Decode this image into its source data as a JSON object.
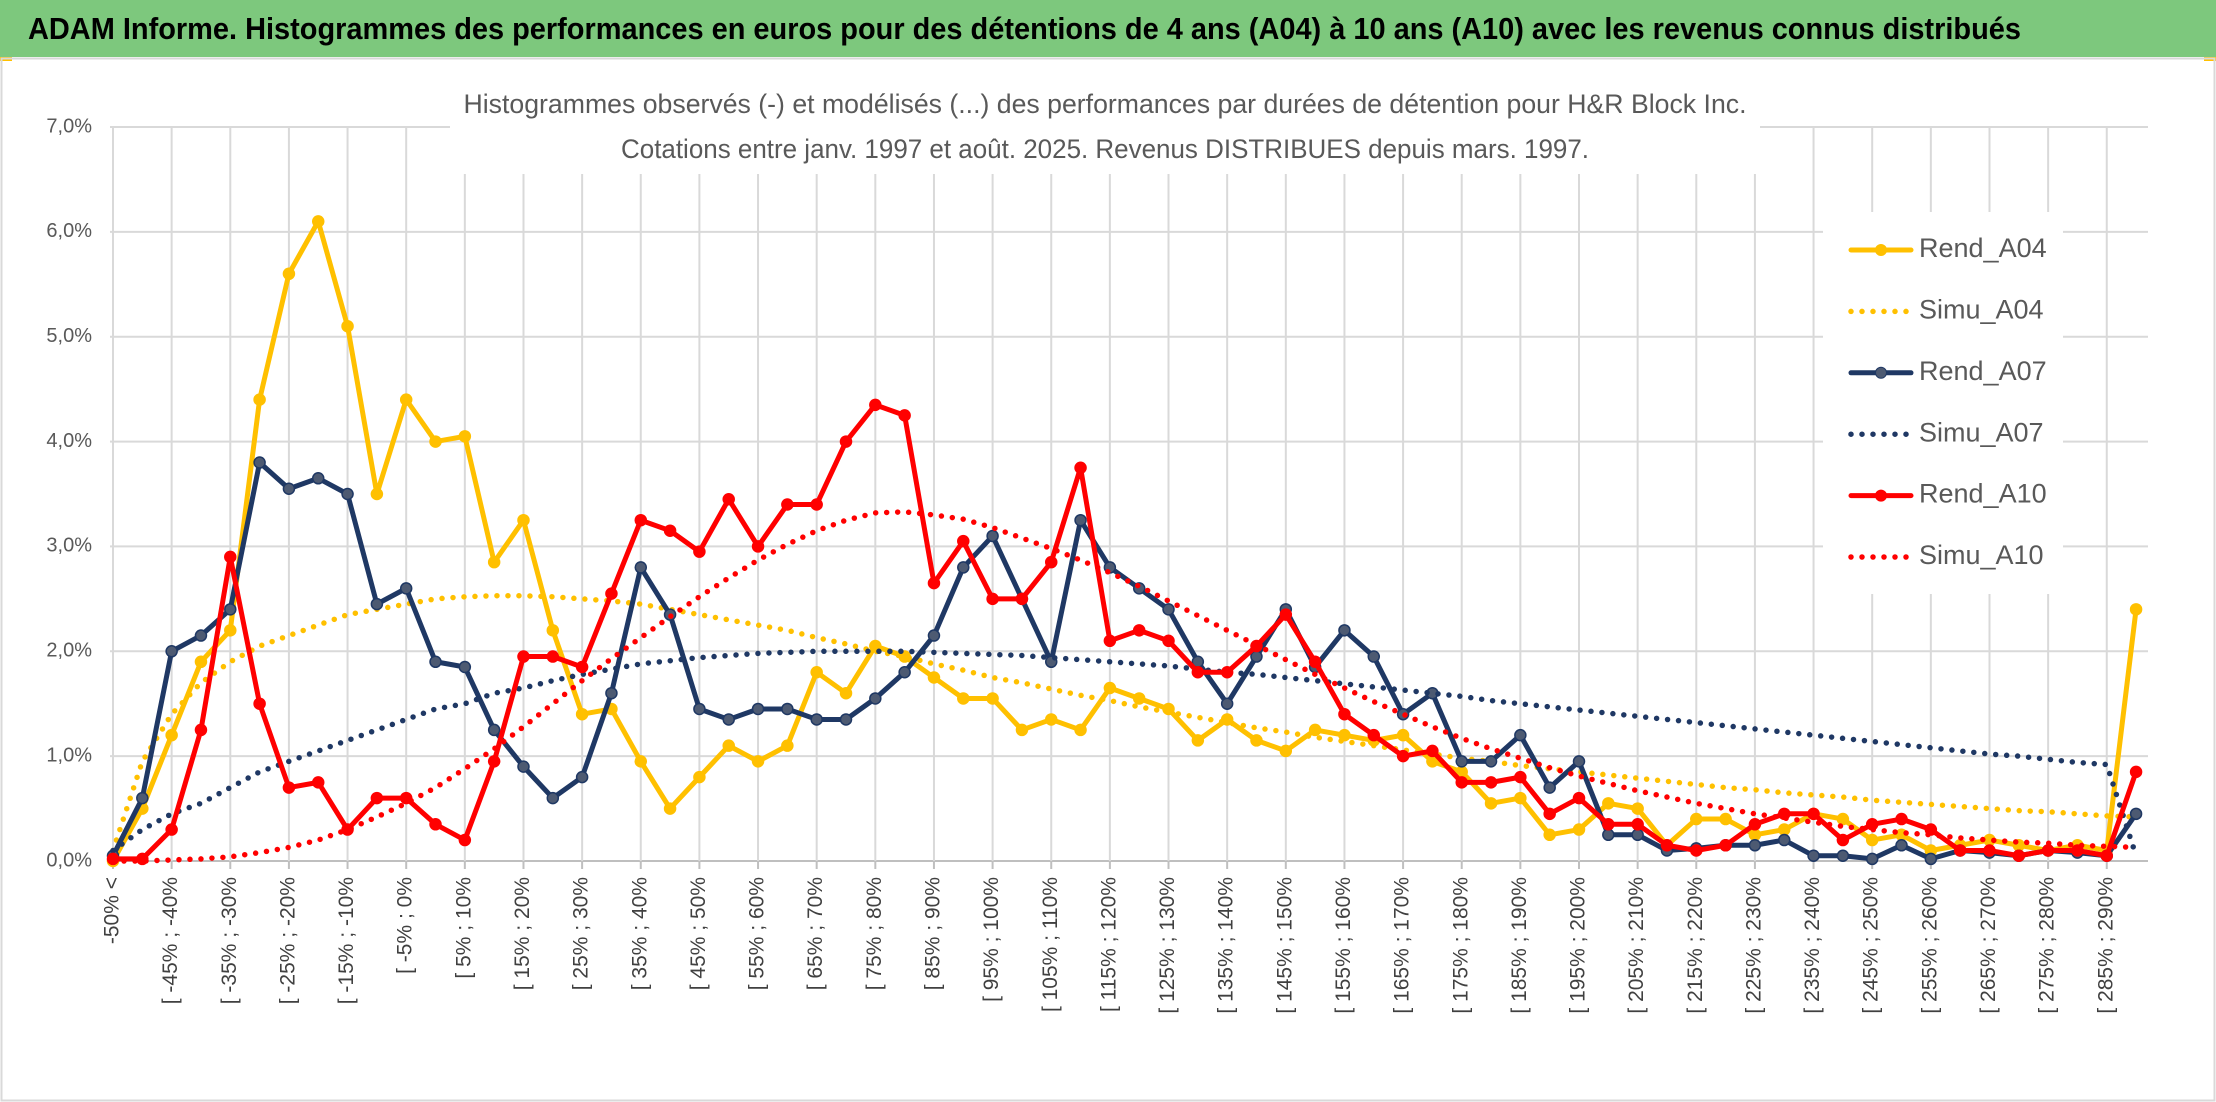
{
  "header": {
    "title": "ADAM Informe. Histogrammes des performances en euros pour des détentions de 4 ans (A04) à 10 ans (A10) avec les revenus connus distribués"
  },
  "chart_data": {
    "type": "line",
    "title": "Histogrammes observés (-) et modélisés (...) des performances par durées de détention pour H&R Block Inc.",
    "subtitle": "Cotations entre janv. 1997 et août. 2025. Revenus DISTRIBUES depuis mars. 1997.",
    "categories": [
      "-50% <",
      null,
      "[ -45% ; -40%",
      null,
      "[ -35% ; -30%",
      null,
      "[ -25% ; -20%",
      null,
      "[ -15% ; -10%",
      null,
      "[ -5% ; 0%",
      null,
      "[ 5% ; 10%",
      null,
      "[ 15% ; 20%",
      null,
      "[ 25% ; 30%",
      null,
      "[ 35% ; 40%",
      null,
      "[ 45% ; 50%",
      null,
      "[ 55% ; 60%",
      null,
      "[ 65% ; 70%",
      null,
      "[ 75% ; 80%",
      null,
      "[ 85% ; 90%",
      null,
      "[ 95% ; 100%",
      null,
      "[ 105% ; 110%",
      null,
      "[ 115% ; 120%",
      null,
      "[ 125% ; 130%",
      null,
      "[ 135% ; 140%",
      null,
      "[ 145% ; 150%",
      null,
      "[ 155% ; 160%",
      null,
      "[ 165% ; 170%",
      null,
      "[ 175% ; 180%",
      null,
      "[ 185% ; 190%",
      null,
      "[ 195% ; 200%",
      null,
      "[ 205% ; 210%",
      null,
      "[ 215% ; 220%",
      null,
      "[ 225% ; 230%",
      null,
      "[ 235% ; 240%",
      null,
      "[ 245% ; 250%",
      null,
      "[ 255% ; 260%",
      null,
      "[ 265% ; 270%",
      null,
      "[ 275% ; 280%",
      null,
      "[ 285% ; 290%",
      null
    ],
    "series": [
      {
        "name": "Rend_A04",
        "color": "#FFC000",
        "style": "solid",
        "markers": true,
        "values": [
          0,
          0.5,
          1.2,
          1.9,
          2.2,
          4.4,
          5.6,
          6.1,
          5.1,
          3.5,
          4.4,
          4.0,
          4.05,
          2.85,
          3.25,
          2.2,
          1.4,
          1.45,
          0.95,
          0.5,
          0.8,
          1.1,
          0.95,
          1.1,
          1.8,
          1.6,
          2.05,
          1.95,
          1.75,
          1.55,
          1.55,
          1.25,
          1.35,
          1.25,
          1.65,
          1.55,
          1.45,
          1.15,
          1.35,
          1.15,
          1.05,
          1.25,
          1.2,
          1.15,
          1.2,
          0.95,
          0.85,
          0.55,
          0.6,
          0.25,
          0.3,
          0.55,
          0.5,
          0.15,
          0.4,
          0.4,
          0.25,
          0.3,
          0.45,
          0.4,
          0.2,
          0.25,
          0.1,
          0.15,
          0.2,
          0.15,
          0.1,
          0.15,
          0.1,
          2.4
        ]
      },
      {
        "name": "Simu_A04",
        "color": "#FFC000",
        "style": "dotted",
        "markers": false,
        "values": [
          0.1,
          0.95,
          1.4,
          1.7,
          1.9,
          2.05,
          2.15,
          2.25,
          2.35,
          2.4,
          2.45,
          2.5,
          2.52,
          2.53,
          2.53,
          2.52,
          2.5,
          2.48,
          2.45,
          2.4,
          2.35,
          2.3,
          2.25,
          2.2,
          2.13,
          2.07,
          2.0,
          1.95,
          1.88,
          1.82,
          1.75,
          1.7,
          1.64,
          1.58,
          1.53,
          1.47,
          1.42,
          1.37,
          1.32,
          1.27,
          1.23,
          1.18,
          1.14,
          1.1,
          1.06,
          1.02,
          0.98,
          0.95,
          0.91,
          0.88,
          0.85,
          0.82,
          0.79,
          0.76,
          0.73,
          0.7,
          0.68,
          0.65,
          0.63,
          0.61,
          0.58,
          0.56,
          0.54,
          0.52,
          0.5,
          0.48,
          0.47,
          0.45,
          0.43,
          0.42
        ]
      },
      {
        "name": "Rend_A07",
        "color": "#1F3864",
        "style": "solid",
        "markers": true,
        "values": [
          0.05,
          0.6,
          2.0,
          2.15,
          2.4,
          3.8,
          3.55,
          3.65,
          3.5,
          2.45,
          2.6,
          1.9,
          1.85,
          1.25,
          0.9,
          0.6,
          0.8,
          1.6,
          2.8,
          2.35,
          1.45,
          1.35,
          1.45,
          1.45,
          1.35,
          1.35,
          1.55,
          1.8,
          2.15,
          2.8,
          3.1,
          2.5,
          1.9,
          3.25,
          2.8,
          2.6,
          2.4,
          1.9,
          1.5,
          1.95,
          2.4,
          1.85,
          2.2,
          1.95,
          1.4,
          1.6,
          0.95,
          0.95,
          1.2,
          0.7,
          0.95,
          0.25,
          0.25,
          0.1,
          0.12,
          0.15,
          0.15,
          0.2,
          0.05,
          0.05,
          0.02,
          0.15,
          0.02,
          0.1,
          0.08,
          0.05,
          0.1,
          0.08,
          0.05,
          0.45
        ]
      },
      {
        "name": "Simu_A07",
        "color": "#1F3864",
        "style": "dotted",
        "markers": false,
        "values": [
          0.1,
          0.3,
          0.45,
          0.55,
          0.7,
          0.85,
          0.95,
          1.05,
          1.15,
          1.25,
          1.35,
          1.45,
          1.5,
          1.6,
          1.65,
          1.72,
          1.78,
          1.83,
          1.88,
          1.91,
          1.94,
          1.96,
          1.98,
          1.99,
          2.0,
          2.0,
          2.0,
          2.0,
          1.99,
          1.98,
          1.97,
          1.96,
          1.94,
          1.92,
          1.9,
          1.88,
          1.86,
          1.83,
          1.8,
          1.78,
          1.75,
          1.72,
          1.69,
          1.66,
          1.63,
          1.6,
          1.57,
          1.53,
          1.5,
          1.47,
          1.44,
          1.41,
          1.38,
          1.35,
          1.32,
          1.29,
          1.26,
          1.23,
          1.2,
          1.17,
          1.14,
          1.11,
          1.08,
          1.05,
          1.02,
          1.0,
          0.97,
          0.94,
          0.92,
          0.05
        ]
      },
      {
        "name": "Rend_A10",
        "color": "#FF0000",
        "style": "solid",
        "markers": true,
        "values": [
          0.02,
          0.02,
          0.3,
          1.25,
          2.9,
          1.5,
          0.7,
          0.75,
          0.3,
          0.6,
          0.6,
          0.35,
          0.2,
          0.95,
          1.95,
          1.95,
          1.85,
          2.55,
          3.25,
          3.15,
          2.95,
          3.45,
          3.0,
          3.4,
          3.4,
          4.0,
          4.35,
          4.25,
          2.65,
          3.05,
          2.5,
          2.5,
          2.85,
          3.75,
          2.1,
          2.2,
          2.1,
          1.8,
          1.8,
          2.05,
          2.35,
          1.9,
          1.4,
          1.2,
          1.0,
          1.05,
          0.75,
          0.75,
          0.8,
          0.45,
          0.6,
          0.35,
          0.35,
          0.15,
          0.1,
          0.15,
          0.35,
          0.45,
          0.45,
          0.2,
          0.35,
          0.4,
          0.3,
          0.1,
          0.1,
          0.05,
          0.1,
          0.1,
          0.05,
          0.85
        ]
      },
      {
        "name": "Simu_A10",
        "color": "#FF0000",
        "style": "dotted",
        "markers": false,
        "values": [
          0,
          0,
          0.01,
          0.02,
          0.04,
          0.08,
          0.13,
          0.2,
          0.3,
          0.42,
          0.55,
          0.7,
          0.88,
          1.07,
          1.28,
          1.5,
          1.72,
          1.93,
          2.13,
          2.33,
          2.52,
          2.7,
          2.87,
          3.02,
          3.15,
          3.25,
          3.32,
          3.33,
          3.3,
          3.26,
          3.18,
          3.08,
          2.98,
          2.87,
          2.75,
          2.62,
          2.48,
          2.34,
          2.2,
          2.06,
          1.92,
          1.78,
          1.65,
          1.52,
          1.4,
          1.28,
          1.17,
          1.07,
          0.98,
          0.89,
          0.81,
          0.74,
          0.67,
          0.61,
          0.55,
          0.5,
          0.45,
          0.41,
          0.37,
          0.33,
          0.3,
          0.27,
          0.25,
          0.22,
          0.2,
          0.18,
          0.17,
          0.15,
          0.14,
          0.13
        ]
      }
    ],
    "ylim": [
      0,
      7
    ],
    "yticks": [
      {
        "value": 0,
        "label": "0,0%"
      },
      {
        "value": 1,
        "label": "1,0%"
      },
      {
        "value": 2,
        "label": "2,0%"
      },
      {
        "value": 3,
        "label": "3,0%"
      },
      {
        "value": 4,
        "label": "4,0%"
      },
      {
        "value": 5,
        "label": "5,0%"
      },
      {
        "value": 6,
        "label": "6,0%"
      },
      {
        "value": 7,
        "label": "7,0%"
      }
    ],
    "grid": true,
    "legend": "right"
  }
}
